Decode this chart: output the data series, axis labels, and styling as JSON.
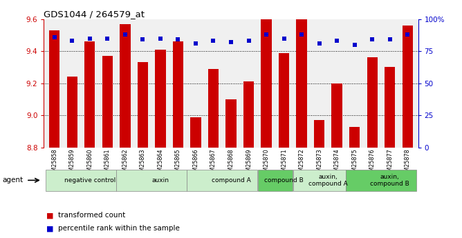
{
  "title": "GDS1044 / 264579_at",
  "samples": [
    "GSM25858",
    "GSM25859",
    "GSM25860",
    "GSM25861",
    "GSM25862",
    "GSM25863",
    "GSM25864",
    "GSM25865",
    "GSM25866",
    "GSM25867",
    "GSM25868",
    "GSM25869",
    "GSM25870",
    "GSM25871",
    "GSM25872",
    "GSM25873",
    "GSM25874",
    "GSM25875",
    "GSM25876",
    "GSM25877",
    "GSM25878"
  ],
  "transformed_count": [
    9.53,
    9.24,
    9.46,
    9.37,
    9.57,
    9.33,
    9.41,
    9.46,
    8.99,
    9.29,
    9.1,
    9.21,
    9.6,
    9.39,
    9.6,
    8.97,
    9.2,
    8.93,
    9.36,
    9.3,
    9.56
  ],
  "percentile_rank": [
    86,
    83,
    85,
    85,
    88,
    84,
    85,
    84,
    81,
    83,
    82,
    83,
    88,
    85,
    88,
    81,
    83,
    80,
    84,
    84,
    88
  ],
  "ylim_left": [
    8.8,
    9.6
  ],
  "ylim_right": [
    0,
    100
  ],
  "yticks_left": [
    8.8,
    9.0,
    9.2,
    9.4,
    9.6
  ],
  "yticks_right": [
    0,
    25,
    50,
    75,
    100
  ],
  "ytick_labels_right": [
    "0",
    "25",
    "50",
    "75",
    "100%"
  ],
  "groups": [
    {
      "label": "negative control",
      "start": 0,
      "end": 4,
      "color": "#cceecc"
    },
    {
      "label": "auxin",
      "start": 4,
      "end": 8,
      "color": "#cceecc"
    },
    {
      "label": "compound A",
      "start": 8,
      "end": 12,
      "color": "#cceecc"
    },
    {
      "label": "compound B",
      "start": 12,
      "end": 14,
      "color": "#66cc66"
    },
    {
      "label": "auxin,\ncompound A",
      "start": 14,
      "end": 17,
      "color": "#cceecc"
    },
    {
      "label": "auxin,\ncompound B",
      "start": 17,
      "end": 21,
      "color": "#66cc66"
    }
  ],
  "bar_color": "#cc0000",
  "dot_color": "#0000cc",
  "bar_width": 0.6,
  "plot_bg": "#f0f0f0",
  "fig_bg": "#ffffff"
}
